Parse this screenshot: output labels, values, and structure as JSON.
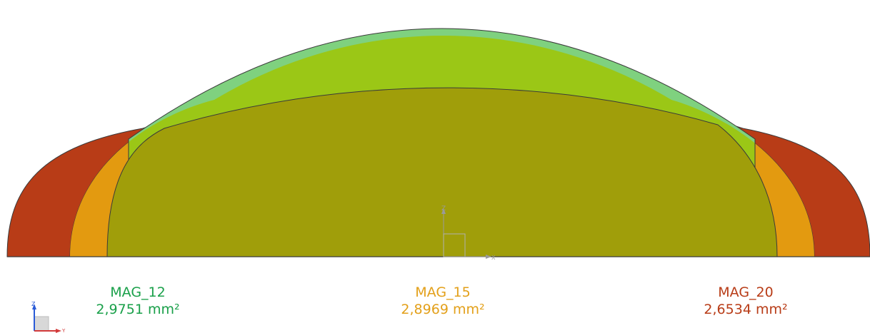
{
  "profiles": [
    {
      "name": "MAG_12",
      "area": "2,9751 mm²",
      "color": "#7fd17f",
      "label_color": "#1aa04a"
    },
    {
      "name": "MAG_15",
      "area": "2,8969 mm²",
      "color": "#f2c233",
      "label_color": "#e3a01a"
    },
    {
      "name": "MAG_20",
      "area": "2,6534 mm²",
      "color": "#b83c17",
      "label_color": "#b83c17"
    }
  ],
  "overlaps": {
    "mag12_mag15": "#9bc716",
    "all_three": "#a09e0a",
    "mag15_mag20": "#e39a10"
  },
  "axes": {
    "z_label": "Z",
    "x_label": "X",
    "y_label": "Y"
  }
}
